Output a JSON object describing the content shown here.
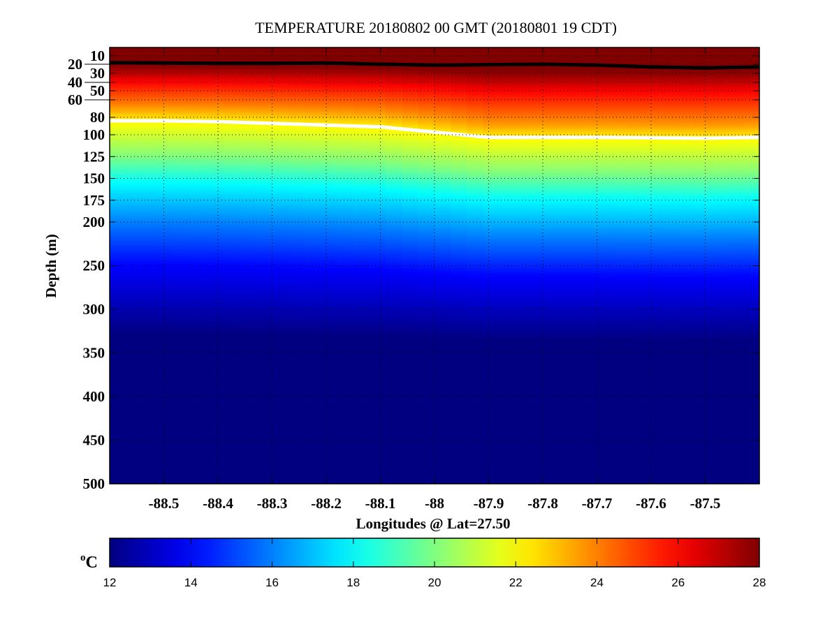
{
  "chart_data": {
    "type": "heatmap",
    "title": "TEMPERATURE 20180802 00 GMT (20180801 19 CDT)",
    "xlabel": "Longitudes @ Lat=27.50",
    "ylabel": "Depth (m)",
    "xlim": [
      -88.6,
      -87.4
    ],
    "ylim": [
      0,
      500
    ],
    "y_reversed": true,
    "grid": true,
    "x_ticks": [
      -88.5,
      -88.4,
      -88.3,
      -88.2,
      -88.1,
      -88,
      -87.9,
      -87.8,
      -87.7,
      -87.6,
      -87.5
    ],
    "x_tick_labels": [
      "-88.5",
      "-88.4",
      "-88.3",
      "-88.2",
      "-88.1",
      "-88",
      "-87.9",
      "-87.8",
      "-87.7",
      "-87.6",
      "-87.5"
    ],
    "y_ticks": [
      10,
      20,
      30,
      40,
      50,
      60,
      80,
      100,
      125,
      150,
      175,
      200,
      250,
      300,
      350,
      400,
      450,
      500
    ],
    "y_tick_labels": [
      "10",
      "20",
      "30",
      "40",
      "50",
      "60",
      "80",
      "100",
      "125",
      "150",
      "175",
      "200",
      "250",
      "300",
      "350",
      "400",
      "450",
      "500"
    ],
    "colormap": "jet",
    "colorbar": {
      "label": "oC",
      "label_base": "o",
      "label_unit": "C",
      "range": [
        12,
        28
      ],
      "ticks": [
        12,
        14,
        16,
        18,
        20,
        22,
        24,
        26,
        28
      ],
      "tick_labels": [
        "12",
        "14",
        "16",
        "18",
        "20",
        "22",
        "24",
        "26",
        "28"
      ]
    },
    "temperature_profile_west": {
      "depth": [
        0,
        10,
        22,
        40,
        65,
        86,
        125,
        155,
        200,
        250,
        330,
        500
      ],
      "temperature": [
        29,
        28.8,
        28,
        26,
        24,
        22,
        20,
        18,
        16,
        14,
        12,
        11
      ]
    },
    "contours": [
      {
        "color": "#000000",
        "longitude": [
          -88.6,
          -88.5,
          -88.4,
          -88.3,
          -88.2,
          -88.1,
          -88.0,
          -87.9,
          -87.8,
          -87.7,
          -87.6,
          -87.5,
          -87.4
        ],
        "depth": [
          18,
          18.5,
          19,
          19,
          18.5,
          20,
          21,
          20.5,
          20,
          21,
          23,
          24,
          23
        ]
      },
      {
        "color": "#ffffff",
        "longitude": [
          -88.6,
          -88.5,
          -88.4,
          -88.3,
          -88.2,
          -88.1,
          -88.0,
          -87.9,
          -87.8,
          -87.7,
          -87.6,
          -87.5,
          -87.4
        ],
        "depth": [
          84,
          84,
          85,
          87,
          89,
          91,
          97,
          103,
          103,
          103,
          103.5,
          104,
          103
        ]
      }
    ]
  }
}
